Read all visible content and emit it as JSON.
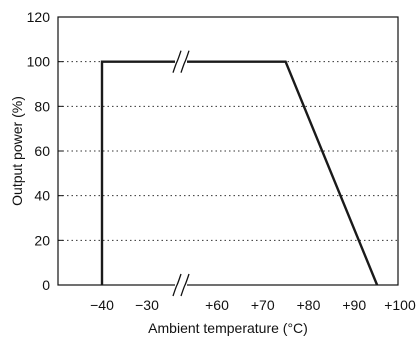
{
  "chart_data": {
    "type": "line",
    "xlabel": "Ambient temperature (°C)",
    "ylabel": "Output power (%)",
    "ylim": [
      0,
      120
    ],
    "y_ticks": [
      0,
      20,
      40,
      60,
      80,
      100,
      120
    ],
    "y_tick_labels": [
      "0",
      "20",
      "40",
      "60",
      "80",
      "100",
      "120"
    ],
    "x_tick_labels": [
      "−40",
      "−30",
      "+60",
      "+70",
      "+80",
      "+90",
      "+100"
    ],
    "x_ticks": [
      -40,
      -30,
      60,
      70,
      80,
      90,
      100
    ],
    "x_axis_break": {
      "between": [
        -30,
        60
      ],
      "marker": "double-slash"
    },
    "grid": "dotted-horizontal",
    "series": [
      {
        "points": [
          {
            "x": -40,
            "y": 0
          },
          {
            "x": -40,
            "y": 100
          },
          {
            "x": 75,
            "y": 100
          },
          {
            "x": 95,
            "y": 0
          }
        ]
      }
    ],
    "colors": {
      "line": "#1a1a1a",
      "grid": "#333333",
      "frame": "#111111"
    }
  }
}
